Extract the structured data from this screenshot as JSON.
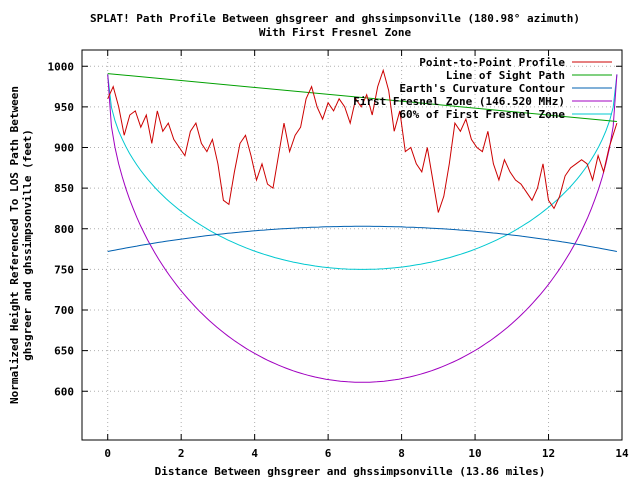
{
  "chart_data": {
    "type": "line",
    "title_line1": "SPLAT! Path Profile Between ghsgreer and ghssimpsonville (180.98° azimuth)",
    "title_line2": "With First Fresnel Zone",
    "xlabel": "Distance Between ghsgreer and ghssimpsonville (13.86 miles)",
    "ylabel_line1": "Normalized Height Referenced To LOS Path Between",
    "ylabel_line2": "ghsgreer and ghssimpsonville (feet)",
    "xlim": [
      -0.7,
      14
    ],
    "ylim": [
      540,
      1020
    ],
    "xticks": [
      0,
      2,
      4,
      6,
      8,
      10,
      12,
      14
    ],
    "yticks": [
      600,
      650,
      700,
      750,
      800,
      850,
      900,
      950,
      1000
    ],
    "grid": true,
    "legend_position": "top-right",
    "series": [
      {
        "name": "Point-to-Point Profile",
        "color": "#cc0000",
        "x": [
          0,
          0.15,
          0.3,
          0.45,
          0.6,
          0.75,
          0.9,
          1.05,
          1.2,
          1.35,
          1.5,
          1.65,
          1.8,
          1.95,
          2.1,
          2.25,
          2.4,
          2.55,
          2.7,
          2.85,
          3.0,
          3.15,
          3.3,
          3.45,
          3.6,
          3.75,
          3.9,
          4.05,
          4.2,
          4.35,
          4.5,
          4.65,
          4.8,
          4.95,
          5.1,
          5.25,
          5.4,
          5.55,
          5.7,
          5.85,
          6.0,
          6.15,
          6.3,
          6.45,
          6.6,
          6.75,
          6.9,
          7.05,
          7.2,
          7.35,
          7.5,
          7.65,
          7.8,
          7.95,
          8.1,
          8.25,
          8.4,
          8.55,
          8.7,
          8.85,
          9.0,
          9.15,
          9.3,
          9.45,
          9.6,
          9.75,
          9.9,
          10.05,
          10.2,
          10.35,
          10.5,
          10.65,
          10.8,
          10.95,
          11.1,
          11.25,
          11.4,
          11.55,
          11.7,
          11.85,
          12.0,
          12.15,
          12.3,
          12.45,
          12.6,
          12.75,
          12.9,
          13.05,
          13.2,
          13.35,
          13.5,
          13.65,
          13.86
        ],
        "y": [
          960,
          975,
          950,
          915,
          940,
          945,
          925,
          940,
          905,
          945,
          920,
          930,
          910,
          900,
          890,
          920,
          930,
          905,
          895,
          910,
          880,
          835,
          830,
          870,
          905,
          915,
          890,
          860,
          880,
          855,
          850,
          890,
          930,
          895,
          915,
          925,
          960,
          975,
          950,
          935,
          955,
          945,
          960,
          950,
          930,
          960,
          950,
          965,
          940,
          975,
          995,
          970,
          920,
          945,
          895,
          900,
          880,
          870,
          900,
          860,
          820,
          840,
          880,
          930,
          920,
          935,
          910,
          900,
          895,
          920,
          880,
          860,
          885,
          870,
          860,
          855,
          845,
          835,
          850,
          880,
          835,
          825,
          840,
          865,
          875,
          880,
          885,
          880,
          860,
          890,
          870,
          900,
          930
        ]
      },
      {
        "name": "Line of Sight Path",
        "color": "#00a000",
        "x": [
          0,
          13.86
        ],
        "y": [
          991,
          932
        ]
      },
      {
        "name": "Earth's Curvature Contour",
        "color": "#0060b0",
        "curve": "parabola",
        "x_end": 13.86,
        "y_endpoints": 772,
        "y_mid": 803
      },
      {
        "name": "First Fresnel Zone (146.520 MHz)",
        "color": "#a000c0",
        "curve": "ellipse-half",
        "x_end": 13.86,
        "y_endpoints": 990,
        "y_min": 611
      },
      {
        "name": "60% of First Fresnel Zone",
        "color": "#00c8d0",
        "curve": "ellipse-half",
        "x_end": 13.86,
        "y_endpoints": 990,
        "y_min": 750
      }
    ]
  }
}
